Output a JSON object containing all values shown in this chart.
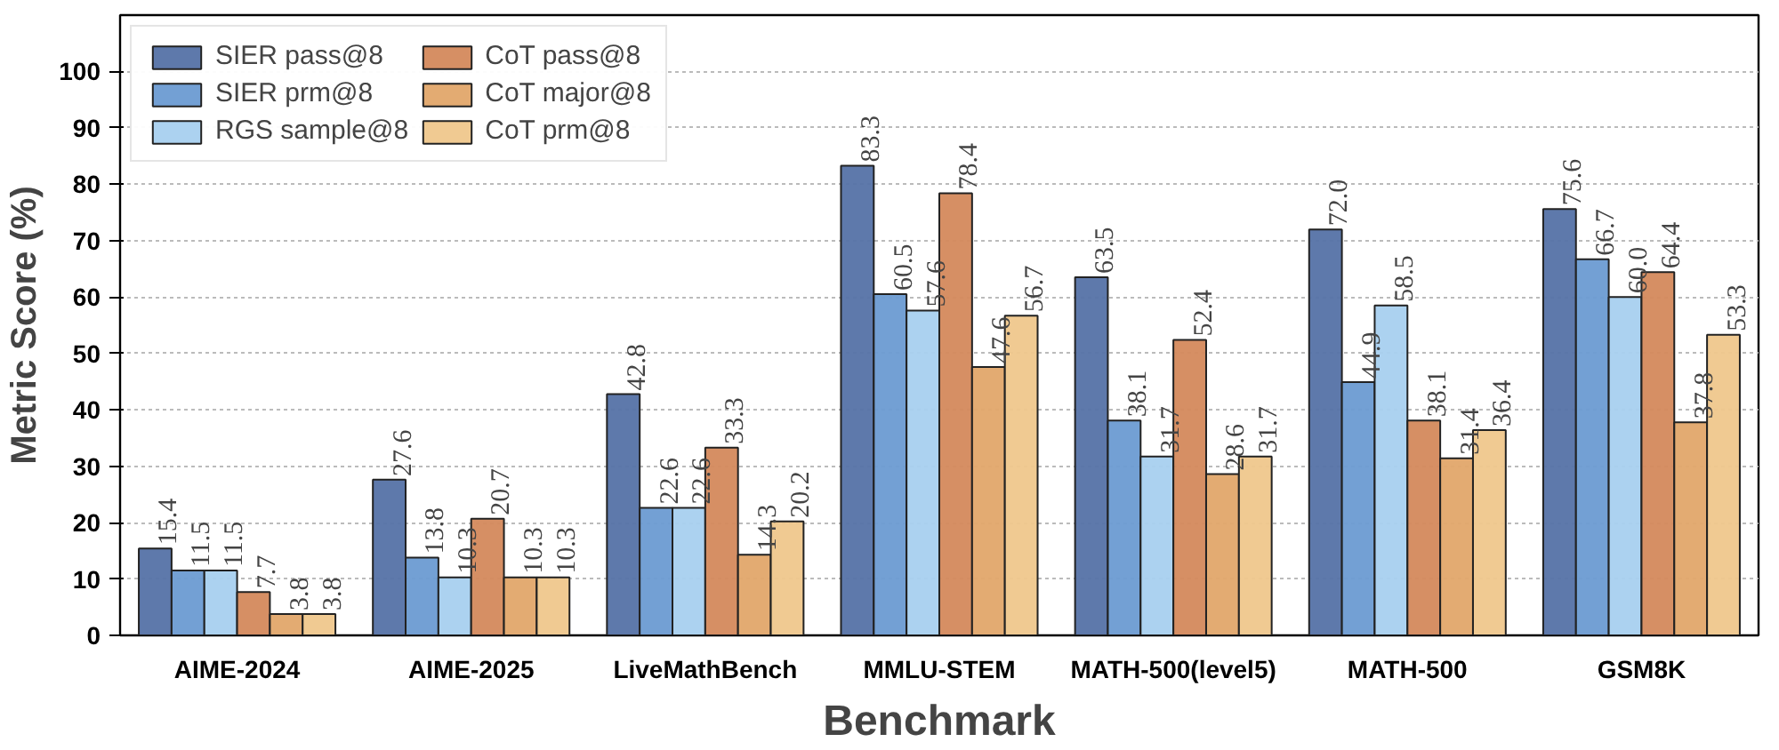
{
  "chart_data": {
    "type": "bar",
    "xlabel": "Benchmark",
    "ylabel": "Metric Score (%)",
    "categories": [
      "AIME-2024",
      "AIME-2025",
      "LiveMathBench",
      "MMLU-STEM",
      "MATH-500(level5)",
      "MATH-500",
      "GSM8K"
    ],
    "series": [
      {
        "name": "SIER pass@8",
        "color": "#5572a6",
        "values": [
          15.4,
          27.6,
          42.8,
          83.3,
          63.5,
          72.0,
          75.6
        ],
        "value_labels": [
          "15.4",
          "27.6",
          "42.8",
          "83.3",
          "63.5",
          "72.0",
          "75.6"
        ]
      },
      {
        "name": "SIER prm@8",
        "color": "#6b9bd2",
        "values": [
          11.5,
          13.8,
          22.6,
          60.5,
          38.1,
          44.9,
          66.7
        ],
        "value_labels": [
          "11.5",
          "13.8",
          "22.6",
          "60.5",
          "38.1",
          "44.9",
          "66.7"
        ]
      },
      {
        "name": "RGS sample@8",
        "color": "#a8d0ef",
        "values": [
          11.5,
          10.3,
          22.6,
          57.6,
          31.7,
          58.5,
          60.0
        ],
        "value_labels": [
          "11.5",
          "10.3",
          "22.6",
          "57.6",
          "31.7",
          "58.5",
          "60.0"
        ]
      },
      {
        "name": "CoT pass@8",
        "color": "#d4895c",
        "values": [
          7.7,
          20.7,
          33.3,
          78.4,
          52.4,
          38.1,
          64.4
        ],
        "value_labels": [
          "7.7",
          "20.7",
          "33.3",
          "78.4",
          "52.4",
          "38.1",
          "64.4"
        ]
      },
      {
        "name": "CoT major@8",
        "color": "#e2a66a",
        "values": [
          3.8,
          10.3,
          14.3,
          47.6,
          28.6,
          31.4,
          37.8
        ],
        "value_labels": [
          "3.8",
          "10.3",
          "14.3",
          "47.6",
          "28.6",
          "31.4",
          "37.8"
        ]
      },
      {
        "name": "CoT prm@8",
        "color": "#efc78c",
        "values": [
          3.8,
          10.3,
          20.2,
          56.7,
          31.7,
          36.4,
          53.3
        ],
        "value_labels": [
          "3.8",
          "10.3",
          "20.2",
          "56.7",
          "31.7",
          "36.4",
          "53.3"
        ]
      }
    ],
    "ylim": [
      0,
      110
    ],
    "yticks": [
      0,
      10,
      20,
      30,
      40,
      50,
      60,
      70,
      80,
      90,
      100
    ],
    "grid": "y",
    "legend": "top left"
  }
}
